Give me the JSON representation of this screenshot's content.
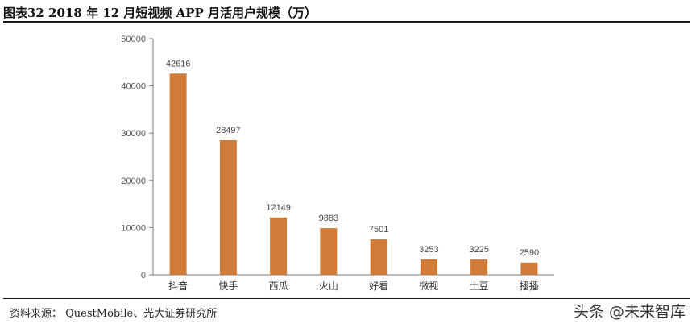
{
  "header": {
    "title": "图表32 2018 年 12 月短视频 APP 月活用户规模（万）"
  },
  "footer": {
    "source": "资料来源：  QuestMobile、光大证券研究所",
    "watermark": "头条 @未来智库"
  },
  "colors": {
    "bar": "#d07b37",
    "axis": "#7a7a7a",
    "text": "#333333"
  },
  "chart_data": {
    "type": "bar",
    "title": "",
    "xlabel": "",
    "ylabel": "",
    "categories": [
      "抖音",
      "快手",
      "西瓜",
      "火山",
      "好看",
      "微视",
      "土豆",
      "播播"
    ],
    "values": [
      42616,
      28497,
      12149,
      9883,
      7501,
      3253,
      3225,
      2590
    ],
    "ylim": [
      0,
      50000
    ],
    "yticks": [
      "0",
      "10000",
      "20000",
      "30000",
      "40000",
      "50000"
    ],
    "grid": false,
    "legend": "none"
  }
}
